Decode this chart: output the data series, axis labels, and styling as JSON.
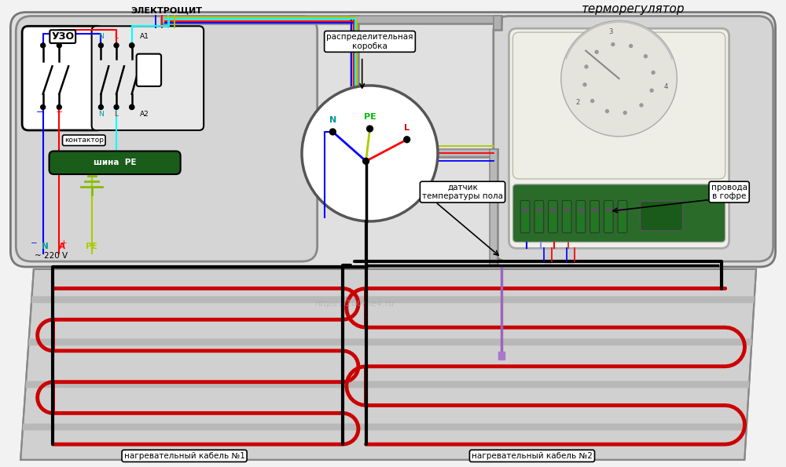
{
  "bg_color": "#f2f2f2",
  "elektroshit_label": "ЭЛЕКТРОЩИТ",
  "uzo_label": "УЗО",
  "kontaktor_label": "контактор",
  "shina_label": "шина  PE",
  "thermoreg_label": "терморегулятор",
  "rasp_label": "распределительная\nкоробка",
  "datchik_label": "датчик\nтемпературы пола",
  "provoda_label": "провода\nв гофре",
  "kabel1_label": "нагревательный кабель №1",
  "kabel2_label": "нагревательный кабель №2",
  "N_label": "N",
  "PE_label": "PE",
  "L_label": "L",
  "minus_label": "−",
  "plus_label": "+",
  "N2_label": "N",
  "A_label": "A",
  "v220_label": "~ 220 V",
  "RE_label": "PE",
  "A1_label": "A1",
  "A2_label": "A2"
}
